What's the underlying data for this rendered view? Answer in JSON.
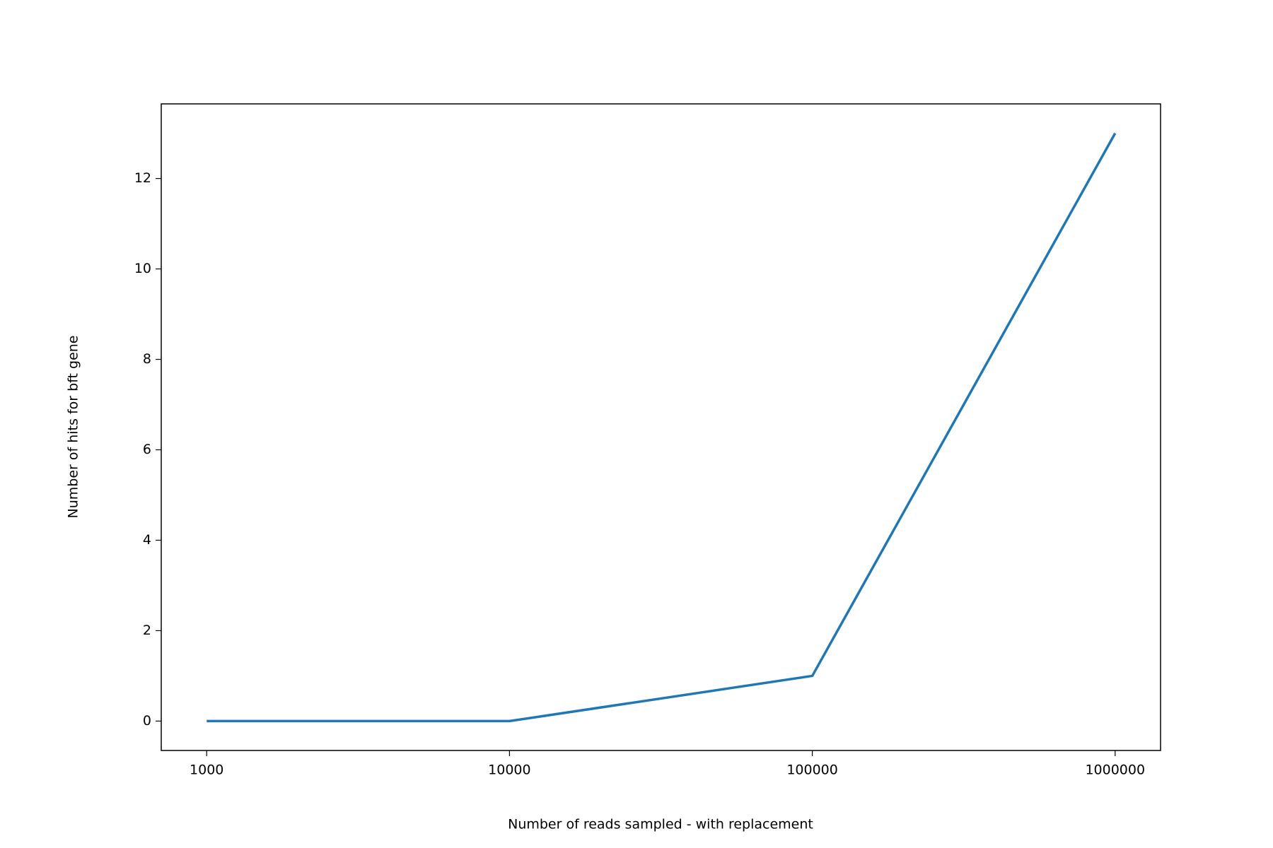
{
  "chart_data": {
    "type": "line",
    "x_label": "Number of reads sampled - with replacement",
    "y_label": "Number of hits for bft gene",
    "categories": [
      "1000",
      "10000",
      "100000",
      "1000000"
    ],
    "values": [
      0,
      0,
      1,
      13
    ],
    "color": "#1f77b4",
    "ylim": [
      -0.65,
      13.65
    ],
    "yticks": [
      0,
      2,
      4,
      6,
      8,
      10,
      12
    ],
    "grid": false
  }
}
